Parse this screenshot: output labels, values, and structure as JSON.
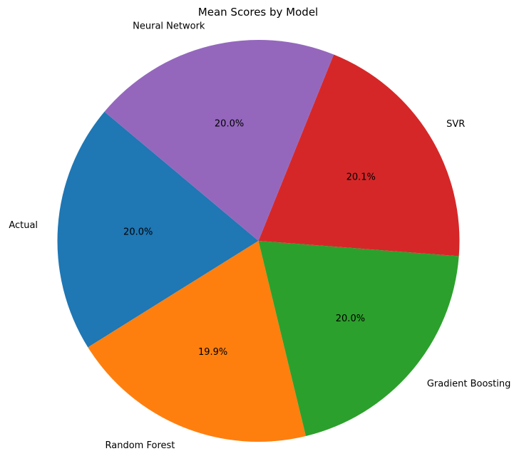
{
  "chart_data": {
    "type": "pie",
    "title": "Mean Scores by Model",
    "slices": [
      {
        "label": "Actual",
        "percent": 20.0,
        "pct_label": "20.0%",
        "color": "#1f77b4"
      },
      {
        "label": "Random Forest",
        "percent": 19.9,
        "pct_label": "19.9%",
        "color": "#ff7f0e"
      },
      {
        "label": "Gradient Boosting",
        "percent": 20.0,
        "pct_label": "20.0%",
        "color": "#2ca02c"
      },
      {
        "label": "SVR",
        "percent": 20.1,
        "pct_label": "20.1%",
        "color": "#d62728"
      },
      {
        "label": "Neural Network",
        "percent": 20.0,
        "pct_label": "20.0%",
        "color": "#9467bd"
      }
    ],
    "start_angle_deg": 140,
    "direction": "counterclockwise",
    "legend": "none"
  }
}
